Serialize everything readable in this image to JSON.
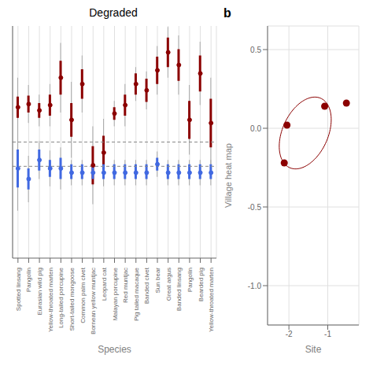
{
  "chart_data": [
    {
      "type": "errorbar",
      "title": "Degraded",
      "x_label": "Species",
      "categories": [
        "Spotted linsang",
        "Pangolin",
        "Eurasian wild pig",
        "Yellow-throated marten",
        "Long-tailed porcupine",
        "Short-tailed mongoose",
        "Common palm civet",
        "Bornean yellow muntjac",
        "Leopard cat",
        "Malayan porcupine",
        "Red muntjac",
        "Pig tailed macaque",
        "Banded civet",
        "Sun bear",
        "Great argus",
        "Banded linsang",
        "Pangolin",
        "Bearded pig",
        "Yellow-throated marten"
      ],
      "series": [
        {
          "color": "#8B0000",
          "values": [
            0.38,
            0.41,
            0.35,
            0.4,
            0.66,
            0.26,
            0.6,
            -0.17,
            -0.05,
            0.32,
            0.4,
            0.6,
            0.54,
            0.73,
            0.9,
            0.78,
            0.26,
            0.7,
            0.23
          ],
          "lower": [
            0.1,
            0.23,
            0.2,
            0.2,
            0.33,
            -0.1,
            0.33,
            -0.54,
            -0.37,
            0.2,
            0.2,
            0.44,
            0.36,
            0.5,
            0.66,
            0.5,
            -0.07,
            0.4,
            -0.2
          ],
          "upper": [
            0.66,
            0.59,
            0.5,
            0.6,
            0.99,
            0.62,
            0.87,
            0.2,
            0.27,
            0.44,
            0.6,
            0.76,
            0.72,
            0.96,
            1.14,
            1.06,
            0.59,
            1.0,
            0.66
          ],
          "inner_lower": [
            0.28,
            0.33,
            0.28,
            0.3,
            0.5,
            0.1,
            0.46,
            -0.35,
            -0.21,
            0.26,
            0.3,
            0.5,
            0.43,
            0.6,
            0.76,
            0.63,
            0.08,
            0.53,
            0.0
          ],
          "inner_upper": [
            0.48,
            0.49,
            0.42,
            0.5,
            0.82,
            0.42,
            0.74,
            0.01,
            0.11,
            0.38,
            0.5,
            0.7,
            0.65,
            0.86,
            1.04,
            0.93,
            0.44,
            0.87,
            0.46
          ]
        },
        {
          "color": "#4169E1",
          "values": [
            -0.2,
            -0.3,
            -0.12,
            -0.2,
            -0.2,
            -0.24,
            -0.24,
            -0.24,
            -0.24,
            -0.24,
            -0.24,
            -0.24,
            -0.24,
            -0.16,
            -0.24,
            -0.24,
            -0.24,
            -0.24,
            -0.24
          ],
          "lower": [
            -0.6,
            -0.52,
            -0.3,
            -0.37,
            -0.4,
            -0.36,
            -0.36,
            -0.36,
            -0.36,
            -0.36,
            -0.36,
            -0.36,
            -0.36,
            -0.28,
            -0.36,
            -0.36,
            -0.36,
            -0.36,
            -0.36
          ],
          "upper": [
            0.2,
            -0.08,
            0.06,
            -0.03,
            0.0,
            -0.12,
            -0.12,
            -0.12,
            -0.12,
            -0.12,
            -0.12,
            -0.12,
            -0.12,
            -0.04,
            -0.12,
            -0.12,
            -0.12,
            -0.12,
            -0.12
          ],
          "inner_lower": [
            -0.38,
            -0.4,
            -0.22,
            -0.28,
            -0.3,
            -0.3,
            -0.3,
            -0.3,
            -0.3,
            -0.3,
            -0.3,
            -0.3,
            -0.3,
            -0.22,
            -0.3,
            -0.3,
            -0.3,
            -0.3,
            -0.3
          ],
          "inner_upper": [
            -0.02,
            -0.2,
            -0.02,
            -0.12,
            -0.1,
            -0.16,
            -0.16,
            -0.16,
            -0.16,
            -0.16,
            -0.16,
            -0.16,
            -0.16,
            -0.1,
            -0.16,
            -0.16,
            -0.16,
            -0.16,
            -0.16
          ]
        }
      ],
      "reference_lines": [
        0.05,
        -0.18
      ],
      "ylim": [
        -1.05,
        1.15
      ],
      "grid": true,
      "tick_labels": "x"
    },
    {
      "type": "scatter",
      "x": [
        -2.05,
        -2.12,
        -1.08,
        -0.52
      ],
      "y": [
        0.02,
        -0.22,
        0.14,
        0.16
      ],
      "color": "#8B0000",
      "ellipse": {
        "cx": -1.58,
        "cy": -0.03,
        "width": 1.35,
        "height": 0.42,
        "angle": 8,
        "color": "#8B0000"
      },
      "x_label": "Site",
      "y_label": "Village heat map",
      "annotation": "b",
      "xlim": [
        -2.55,
        -0.2
      ],
      "ylim": [
        -1.25,
        0.65
      ],
      "xticks": [
        -2,
        -1
      ],
      "yticks": [
        0.5,
        {
          "value": 0,
          "label": "0.0"
        },
        -0.5,
        {
          "value": -1,
          "label": "-1.0"
        }
      ],
      "grid": true
    }
  ]
}
